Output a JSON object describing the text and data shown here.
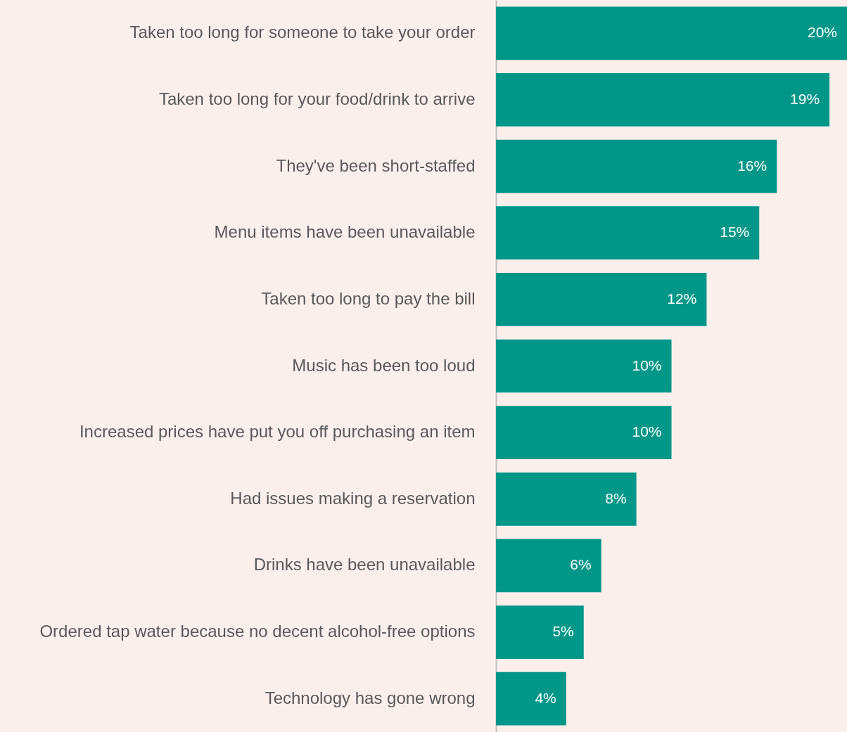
{
  "chart_data": {
    "type": "bar",
    "orientation": "horizontal",
    "categories": [
      "Taken too long for someone to take your order",
      "Taken too long for your food/drink to arrive",
      "They've been short-staffed",
      "Menu items have been unavailable",
      "Taken too long to pay the bill",
      "Music has been too loud",
      "Increased prices have put you off purchasing an item",
      "Had issues making a reservation",
      "Drinks have been unavailable",
      "Ordered tap water because no decent alcohol-free options",
      "Technology has gone wrong"
    ],
    "values": [
      20,
      19,
      16,
      15,
      12,
      10,
      10,
      8,
      6,
      5,
      4
    ],
    "value_labels": [
      "20%",
      "19%",
      "16%",
      "15%",
      "12%",
      "10%",
      "10%",
      "8%",
      "6%",
      "5%",
      "4%"
    ],
    "color": "#009688"
  }
}
